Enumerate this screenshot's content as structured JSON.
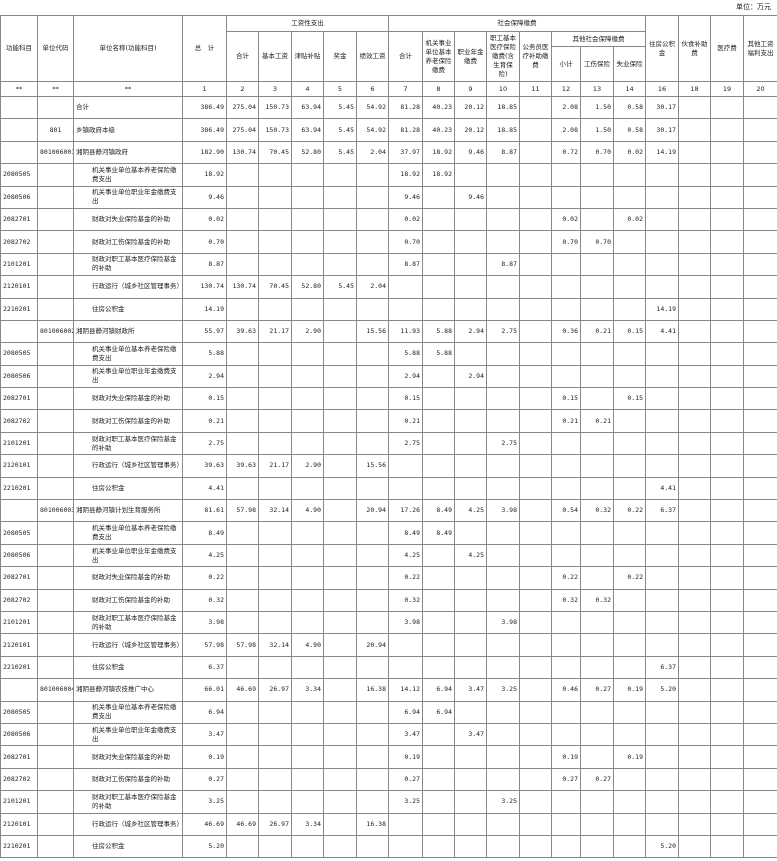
{
  "unit_label": "单位：万元",
  "headers": {
    "func_subject": "功能科目",
    "unit_code": "单位代码",
    "unit_name": "单位名称(功能科目)",
    "total": "总　计",
    "wage": "工资性支出",
    "wage_cols": [
      "合计",
      "基本工资",
      "津贴补贴",
      "奖金",
      "绩效工资"
    ],
    "social": "社会保障缴费",
    "social_cols": [
      "合计",
      "机关事业单位基本养老保险缴费",
      "职业年金缴费",
      "职工基本医疗保险缴费(含生育保险)",
      "公务员医疗补助缴费"
    ],
    "other_social": "其他社会保障缴费",
    "other_social_cols": [
      "小计",
      "工伤保险",
      "失业保险"
    ],
    "tail_cols": [
      "住房公积金",
      "伙食补助费",
      "医疗费",
      "其他工资福利支出"
    ]
  },
  "number_row": [
    "**",
    "**",
    "**",
    "1",
    "2",
    "3",
    "4",
    "5",
    "6",
    "7",
    "8",
    "9",
    "10",
    "11",
    "12",
    "13",
    "14",
    "16",
    "18",
    "19",
    "20"
  ],
  "rows": [
    {
      "code": "",
      "unit": "",
      "name": "合计",
      "level": 0,
      "v": [
        "386.49",
        "275.04",
        "150.73",
        "63.94",
        "5.45",
        "54.92",
        "81.28",
        "40.23",
        "20.12",
        "18.85",
        "",
        "2.08",
        "1.50",
        "0.58",
        "30.17",
        "",
        "",
        ""
      ]
    },
    {
      "code": "",
      "unit": "801",
      "name": "乡镇政府本级",
      "level": 0,
      "v": [
        "386.49",
        "275.04",
        "150.73",
        "63.94",
        "5.45",
        "54.92",
        "81.28",
        "40.23",
        "20.12",
        "18.85",
        "",
        "2.08",
        "1.50",
        "0.58",
        "30.17",
        "",
        "",
        ""
      ]
    },
    {
      "code": "",
      "unit": "801006001",
      "name": "湘阴县静河镇政府",
      "level": 1,
      "v": [
        "182.90",
        "130.74",
        "70.45",
        "52.80",
        "5.45",
        "2.04",
        "37.97",
        "18.92",
        "9.46",
        "8.87",
        "",
        "0.72",
        "0.70",
        "0.02",
        "14.19",
        "",
        "",
        ""
      ]
    },
    {
      "code": "2080505",
      "unit": "",
      "name": "机关事业单位基本养老保险缴费支出",
      "level": 2,
      "v": [
        "18.92",
        "",
        "",
        "",
        "",
        "",
        "18.92",
        "18.92",
        "",
        "",
        "",
        "",
        "",
        "",
        "",
        "",
        "",
        ""
      ]
    },
    {
      "code": "2080506",
      "unit": "",
      "name": "机关事业单位职业年金缴费支出",
      "level": 2,
      "v": [
        "9.46",
        "",
        "",
        "",
        "",
        "",
        "9.46",
        "",
        "9.46",
        "",
        "",
        "",
        "",
        "",
        "",
        "",
        "",
        ""
      ]
    },
    {
      "code": "2082701",
      "unit": "",
      "name": "财政对失业保险基金的补助",
      "level": 2,
      "v": [
        "0.02",
        "",
        "",
        "",
        "",
        "",
        "0.02",
        "",
        "",
        "",
        "",
        "0.02",
        "",
        "0.02",
        "",
        "",
        "",
        ""
      ]
    },
    {
      "code": "2082702",
      "unit": "",
      "name": "财政对工伤保险基金的补助",
      "level": 2,
      "v": [
        "0.70",
        "",
        "",
        "",
        "",
        "",
        "0.70",
        "",
        "",
        "",
        "",
        "0.70",
        "0.70",
        "",
        "",
        "",
        "",
        ""
      ]
    },
    {
      "code": "2101201",
      "unit": "",
      "name": "财政对职工基本医疗保险基金的补助",
      "level": 2,
      "v": [
        "8.87",
        "",
        "",
        "",
        "",
        "",
        "8.87",
        "",
        "",
        "8.87",
        "",
        "",
        "",
        "",
        "",
        "",
        "",
        ""
      ]
    },
    {
      "code": "2120101",
      "unit": "",
      "name": "行政运行（城乡社区管理事务）",
      "level": 2,
      "v": [
        "130.74",
        "130.74",
        "70.45",
        "52.80",
        "5.45",
        "2.04",
        "",
        "",
        "",
        "",
        "",
        "",
        "",
        "",
        "",
        "",
        "",
        ""
      ]
    },
    {
      "code": "2210201",
      "unit": "",
      "name": "住房公积金",
      "level": 2,
      "v": [
        "14.19",
        "",
        "",
        "",
        "",
        "",
        "",
        "",
        "",
        "",
        "",
        "",
        "",
        "",
        "14.19",
        "",
        "",
        ""
      ]
    },
    {
      "code": "",
      "unit": "801006002",
      "name": "湘阴县静河镇财政所",
      "level": 1,
      "v": [
        "55.97",
        "39.63",
        "21.17",
        "2.90",
        "",
        "15.56",
        "11.93",
        "5.88",
        "2.94",
        "2.75",
        "",
        "0.36",
        "0.21",
        "0.15",
        "4.41",
        "",
        "",
        ""
      ]
    },
    {
      "code": "2080505",
      "unit": "",
      "name": "机关事业单位基本养老保险缴费支出",
      "level": 2,
      "v": [
        "5.88",
        "",
        "",
        "",
        "",
        "",
        "5.88",
        "5.88",
        "",
        "",
        "",
        "",
        "",
        "",
        "",
        "",
        "",
        ""
      ]
    },
    {
      "code": "2080506",
      "unit": "",
      "name": "机关事业单位职业年金缴费支出",
      "level": 2,
      "v": [
        "2.94",
        "",
        "",
        "",
        "",
        "",
        "2.94",
        "",
        "2.94",
        "",
        "",
        "",
        "",
        "",
        "",
        "",
        "",
        ""
      ]
    },
    {
      "code": "2082701",
      "unit": "",
      "name": "财政对失业保险基金的补助",
      "level": 2,
      "v": [
        "0.15",
        "",
        "",
        "",
        "",
        "",
        "0.15",
        "",
        "",
        "",
        "",
        "0.15",
        "",
        "0.15",
        "",
        "",
        "",
        ""
      ]
    },
    {
      "code": "2082702",
      "unit": "",
      "name": "财政对工伤保险基金的补助",
      "level": 2,
      "v": [
        "0.21",
        "",
        "",
        "",
        "",
        "",
        "0.21",
        "",
        "",
        "",
        "",
        "0.21",
        "0.21",
        "",
        "",
        "",
        "",
        ""
      ]
    },
    {
      "code": "2101201",
      "unit": "",
      "name": "财政对职工基本医疗保险基金的补助",
      "level": 2,
      "v": [
        "2.75",
        "",
        "",
        "",
        "",
        "",
        "2.75",
        "",
        "",
        "2.75",
        "",
        "",
        "",
        "",
        "",
        "",
        "",
        ""
      ]
    },
    {
      "code": "2120101",
      "unit": "",
      "name": "行政运行（城乡社区管理事务）",
      "level": 2,
      "v": [
        "39.63",
        "39.63",
        "21.17",
        "2.90",
        "",
        "15.56",
        "",
        "",
        "",
        "",
        "",
        "",
        "",
        "",
        "",
        "",
        "",
        ""
      ]
    },
    {
      "code": "2210201",
      "unit": "",
      "name": "住房公积金",
      "level": 2,
      "v": [
        "4.41",
        "",
        "",
        "",
        "",
        "",
        "",
        "",
        "",
        "",
        "",
        "",
        "",
        "",
        "4.41",
        "",
        "",
        ""
      ]
    },
    {
      "code": "",
      "unit": "801006003",
      "name": "湘阴县静河镇计划生育服务所",
      "level": 1,
      "v": [
        "81.61",
        "57.98",
        "32.14",
        "4.90",
        "",
        "20.94",
        "17.26",
        "8.49",
        "4.25",
        "3.98",
        "",
        "0.54",
        "0.32",
        "0.22",
        "6.37",
        "",
        "",
        ""
      ]
    },
    {
      "code": "2080505",
      "unit": "",
      "name": "机关事业单位基本养老保险缴费支出",
      "level": 2,
      "v": [
        "8.49",
        "",
        "",
        "",
        "",
        "",
        "8.49",
        "8.49",
        "",
        "",
        "",
        "",
        "",
        "",
        "",
        "",
        "",
        ""
      ]
    },
    {
      "code": "2080506",
      "unit": "",
      "name": "机关事业单位职业年金缴费支出",
      "level": 2,
      "v": [
        "4.25",
        "",
        "",
        "",
        "",
        "",
        "4.25",
        "",
        "4.25",
        "",
        "",
        "",
        "",
        "",
        "",
        "",
        "",
        ""
      ]
    },
    {
      "code": "2082701",
      "unit": "",
      "name": "财政对失业保险基金的补助",
      "level": 2,
      "v": [
        "0.22",
        "",
        "",
        "",
        "",
        "",
        "0.22",
        "",
        "",
        "",
        "",
        "0.22",
        "",
        "0.22",
        "",
        "",
        "",
        ""
      ]
    },
    {
      "code": "2082702",
      "unit": "",
      "name": "财政对工伤保险基金的补助",
      "level": 2,
      "v": [
        "0.32",
        "",
        "",
        "",
        "",
        "",
        "0.32",
        "",
        "",
        "",
        "",
        "0.32",
        "0.32",
        "",
        "",
        "",
        "",
        ""
      ]
    },
    {
      "code": "2101201",
      "unit": "",
      "name": "财政对职工基本医疗保险基金的补助",
      "level": 2,
      "v": [
        "3.98",
        "",
        "",
        "",
        "",
        "",
        "3.98",
        "",
        "",
        "3.98",
        "",
        "",
        "",
        "",
        "",
        "",
        "",
        ""
      ]
    },
    {
      "code": "2120101",
      "unit": "",
      "name": "行政运行（城乡社区管理事务）",
      "level": 2,
      "v": [
        "57.98",
        "57.98",
        "32.14",
        "4.90",
        "",
        "20.94",
        "",
        "",
        "",
        "",
        "",
        "",
        "",
        "",
        "",
        "",
        "",
        ""
      ]
    },
    {
      "code": "2210201",
      "unit": "",
      "name": "住房公积金",
      "level": 2,
      "v": [
        "6.37",
        "",
        "",
        "",
        "",
        "",
        "",
        "",
        "",
        "",
        "",
        "",
        "",
        "",
        "6.37",
        "",
        "",
        ""
      ]
    },
    {
      "code": "",
      "unit": "801006004",
      "name": "湘阴县静河镇农技推广中心",
      "level": 1,
      "v": [
        "66.01",
        "46.69",
        "26.97",
        "3.34",
        "",
        "16.38",
        "14.12",
        "6.94",
        "3.47",
        "3.25",
        "",
        "0.46",
        "0.27",
        "0.19",
        "5.20",
        "",
        "",
        ""
      ]
    },
    {
      "code": "2080505",
      "unit": "",
      "name": "机关事业单位基本养老保险缴费支出",
      "level": 2,
      "v": [
        "6.94",
        "",
        "",
        "",
        "",
        "",
        "6.94",
        "6.94",
        "",
        "",
        "",
        "",
        "",
        "",
        "",
        "",
        "",
        ""
      ]
    },
    {
      "code": "2080506",
      "unit": "",
      "name": "机关事业单位职业年金缴费支出",
      "level": 2,
      "v": [
        "3.47",
        "",
        "",
        "",
        "",
        "",
        "3.47",
        "",
        "3.47",
        "",
        "",
        "",
        "",
        "",
        "",
        "",
        "",
        ""
      ]
    },
    {
      "code": "2082701",
      "unit": "",
      "name": "财政对失业保险基金的补助",
      "level": 2,
      "v": [
        "0.19",
        "",
        "",
        "",
        "",
        "",
        "0.19",
        "",
        "",
        "",
        "",
        "0.19",
        "",
        "0.19",
        "",
        "",
        "",
        ""
      ]
    },
    {
      "code": "2082702",
      "unit": "",
      "name": "财政对工伤保险基金的补助",
      "level": 2,
      "v": [
        "0.27",
        "",
        "",
        "",
        "",
        "",
        "0.27",
        "",
        "",
        "",
        "",
        "0.27",
        "0.27",
        "",
        "",
        "",
        "",
        ""
      ]
    },
    {
      "code": "2101201",
      "unit": "",
      "name": "财政对职工基本医疗保险基金的补助",
      "level": 2,
      "v": [
        "3.25",
        "",
        "",
        "",
        "",
        "",
        "3.25",
        "",
        "",
        "3.25",
        "",
        "",
        "",
        "",
        "",
        "",
        "",
        ""
      ]
    },
    {
      "code": "2120101",
      "unit": "",
      "name": "行政运行（城乡社区管理事务）",
      "level": 2,
      "v": [
        "46.69",
        "46.69",
        "26.97",
        "3.34",
        "",
        "16.38",
        "",
        "",
        "",
        "",
        "",
        "",
        "",
        "",
        "",
        "",
        "",
        ""
      ]
    },
    {
      "code": "2210201",
      "unit": "",
      "name": "住房公积金",
      "level": 2,
      "v": [
        "5.20",
        "",
        "",
        "",
        "",
        "",
        "",
        "",
        "",
        "",
        "",
        "",
        "",
        "",
        "5.20",
        "",
        "",
        ""
      ]
    }
  ]
}
